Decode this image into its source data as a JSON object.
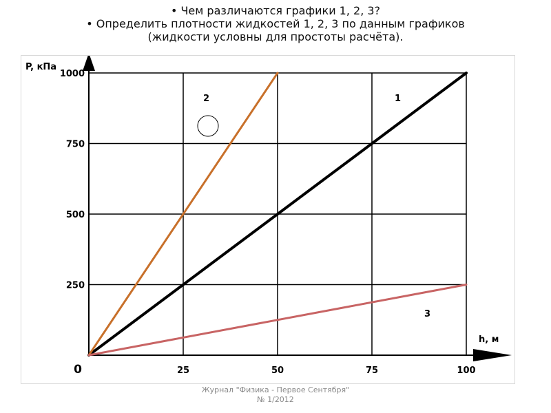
{
  "header": {
    "line1": "• Чем различаются графики 1, 2, 3?",
    "line2": "• Определить плотности жидкостей 1, 2, 3 по данным графиков",
    "line3": "(жидкости условны для простоты расчёта)."
  },
  "footer": {
    "line1": "Журнал \"Физика - Первое Сентября\"",
    "line2": "№ 1/2012"
  },
  "colors": {
    "line1": "#000000",
    "line2": "#c8702a",
    "line3": "#c86464",
    "grid": "#000000"
  },
  "chart_data": {
    "type": "line",
    "xlabel": "h, м",
    "ylabel": "P, кПа",
    "xlim": [
      0,
      100
    ],
    "ylim": [
      0,
      1000
    ],
    "origin_label": "0",
    "x_ticks": [
      25,
      50,
      75,
      100
    ],
    "x_tick_labels": [
      "25",
      "50",
      "75",
      "100"
    ],
    "y_ticks": [
      250,
      500,
      750,
      1000
    ],
    "y_tick_labels": [
      "250",
      "500",
      "750",
      "1000"
    ],
    "grid": true,
    "series": [
      {
        "name": "1",
        "x": [
          0,
          100
        ],
        "y": [
          0,
          1000
        ]
      },
      {
        "name": "2",
        "x": [
          0,
          50
        ],
        "y": [
          0,
          1000
        ]
      },
      {
        "name": "3",
        "x": [
          0,
          100
        ],
        "y": [
          0,
          250
        ]
      }
    ]
  }
}
